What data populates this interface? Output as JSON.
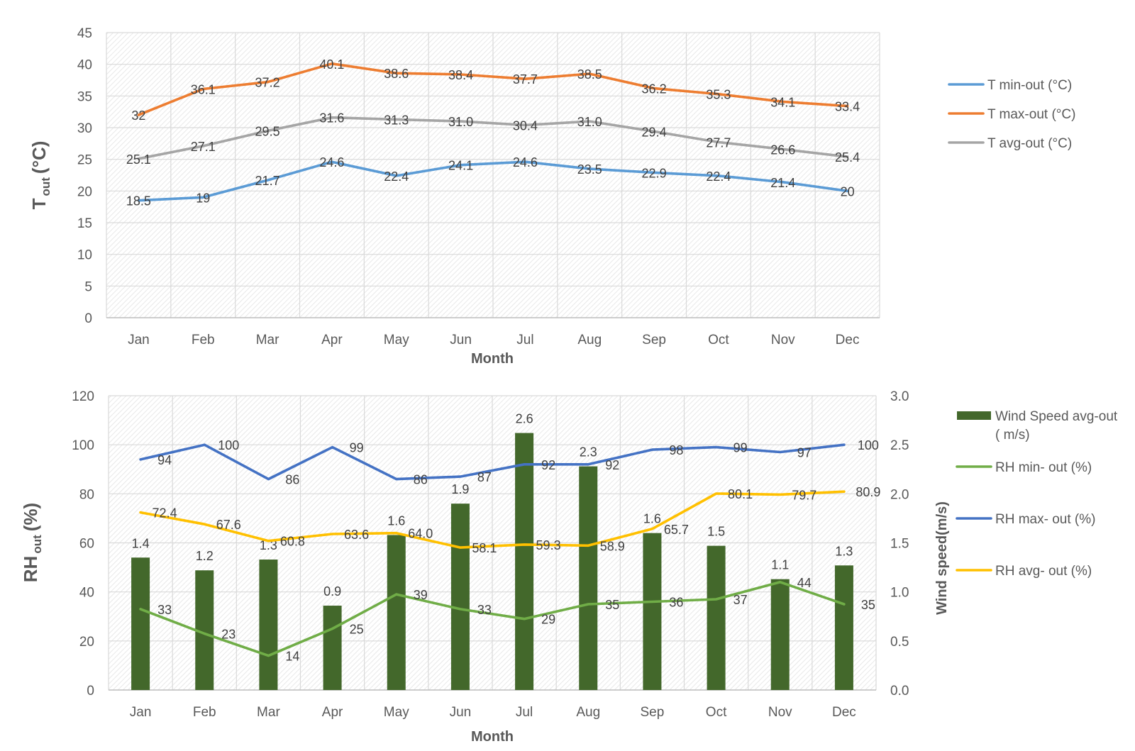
{
  "chart_data": [
    {
      "type": "line",
      "categories": [
        "Jan",
        "Feb",
        "Mar",
        "Apr",
        "May",
        "Jun",
        "Jul",
        "Aug",
        "Sep",
        "Oct",
        "Nov",
        "Dec"
      ],
      "xlabel": "Month",
      "ylabel": "T",
      "ylabel_sub": "out",
      "ylabel_unit": "(°C)",
      "ylim": [
        0,
        45
      ],
      "yticks": [
        0,
        5,
        10,
        15,
        20,
        25,
        30,
        35,
        40,
        45
      ],
      "grid": true,
      "legend": "right",
      "series": [
        {
          "name": "T min-out (°C)",
          "color": "#5B9BD5",
          "values": [
            18.5,
            19,
            21.7,
            24.6,
            22.4,
            24.1,
            24.6,
            23.5,
            22.9,
            22.4,
            21.4,
            20
          ],
          "labels": [
            "18.5",
            "19",
            "21.7",
            "24.6",
            "22.4",
            "24.1",
            "24.6",
            "23.5",
            "22.9",
            "22.4",
            "21.4",
            "20"
          ]
        },
        {
          "name": "T max-out (°C)",
          "color": "#ED7D31",
          "values": [
            32,
            36.1,
            37.2,
            40.1,
            38.6,
            38.4,
            37.7,
            38.5,
            36.2,
            35.3,
            34.1,
            33.4
          ],
          "labels": [
            "32",
            "36.1",
            "37.2",
            "40.1",
            "38.6",
            "38.4",
            "37.7",
            "38.5",
            "36.2",
            "35.3",
            "34.1",
            "33.4"
          ]
        },
        {
          "name": "T avg-out (°C)",
          "color": "#A5A5A5",
          "values": [
            25.1,
            27.1,
            29.5,
            31.6,
            31.3,
            31.0,
            30.4,
            31.0,
            29.4,
            27.7,
            26.6,
            25.4
          ],
          "labels": [
            "25.1",
            "27.1",
            "29.5",
            "31.6",
            "31.3",
            "31.0",
            "30.4",
            "31.0",
            "29.4",
            "27.7",
            "26.6",
            "25.4"
          ]
        }
      ]
    },
    {
      "type": "bar",
      "categories": [
        "Jan",
        "Feb",
        "Mar",
        "Apr",
        "May",
        "Jun",
        "Jul",
        "Aug",
        "Sep",
        "Oct",
        "Nov",
        "Dec"
      ],
      "xlabel": "Month",
      "ylabel": "RH",
      "ylabel_sub": "out",
      "ylabel_unit": "(%)",
      "ylim": [
        0,
        120
      ],
      "yticks": [
        0,
        20,
        40,
        60,
        80,
        100,
        120
      ],
      "y2label": "Wind speed(m/s)",
      "y2lim": [
        0,
        3.0
      ],
      "y2ticks": [
        "0.0",
        "0.5",
        "1.0",
        "1.5",
        "2.0",
        "2.5",
        "3.0"
      ],
      "grid": true,
      "legend": "right",
      "bars": {
        "name_line1": "Wind Speed avg-out",
        "name_line2": "( m/s)",
        "color": "#43682B",
        "axis": "right",
        "values": [
          1.35,
          1.22,
          1.33,
          0.86,
          1.58,
          1.9,
          2.62,
          2.28,
          1.6,
          1.47,
          1.13,
          1.27
        ],
        "labels": [
          "1.4",
          "1.2",
          "1.3",
          "0.9",
          "1.6",
          "1.9",
          "2.6",
          "2.3",
          "1.6",
          "1.5",
          "1.1",
          "1.3"
        ]
      },
      "series": [
        {
          "name": "RH min- out (%)",
          "color": "#70AD47",
          "values": [
            33,
            23,
            14,
            25,
            39,
            33,
            29,
            35,
            36,
            37,
            44,
            35
          ],
          "labels": [
            "33",
            "23",
            "14",
            "25",
            "39",
            "33",
            "29",
            "35",
            "36",
            "37",
            "44",
            "35"
          ]
        },
        {
          "name": "RH max- out (%)",
          "color": "#4472C4",
          "values": [
            94,
            100,
            86,
            99,
            86,
            87,
            92,
            92,
            98,
            99,
            97,
            100
          ],
          "labels": [
            "94",
            "100",
            "86",
            "99",
            "86",
            "87",
            "92",
            "92",
            "98",
            "99",
            "97",
            "100"
          ]
        },
        {
          "name": "RH avg- out (%)",
          "color": "#FFC000",
          "values": [
            72.4,
            67.6,
            60.8,
            63.6,
            64.0,
            58.1,
            59.3,
            58.9,
            65.7,
            80.1,
            79.7,
            80.9
          ],
          "labels": [
            "72.4",
            "67.6",
            "60.8",
            "63.6",
            "64.0",
            "58.1",
            "59.3",
            "58.9",
            "65.7",
            "80.1",
            "79.7",
            "80.9"
          ]
        }
      ]
    }
  ]
}
